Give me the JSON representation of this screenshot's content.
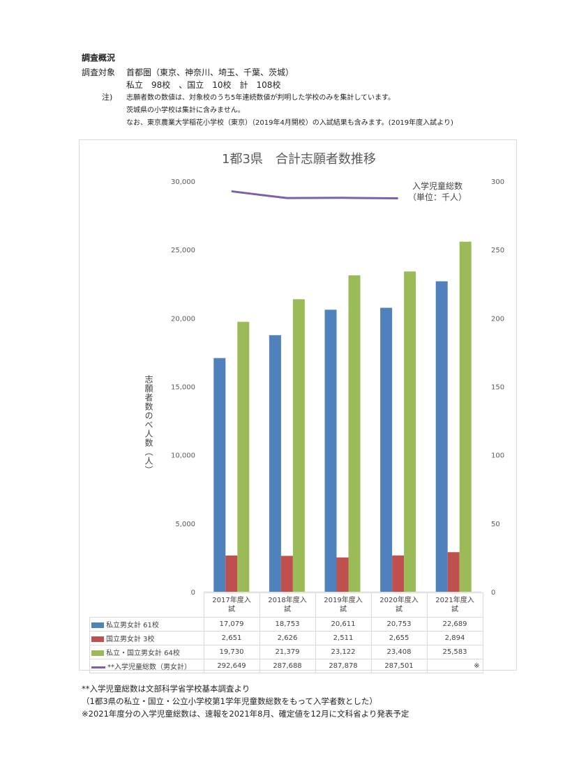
{
  "doc": {
    "section_title": "調査概況",
    "target_label": "調査対象",
    "target_value": "首都圏（東京、神奈川、埼玉、千葉、茨城）",
    "counts": "私立　98校　、国立　10校　計　108校",
    "note_label": "注)",
    "notes": [
      "志願者数の数値は、対象校のうち5年連続数値が判明した学校のみを集計しています。",
      "茨城県の小学校は集計に含みません。",
      "なお、東京農業大学稲花小学校（東京）（2019年4月開校）の入試結果も含みます。(2019年度入試より)"
    ],
    "footnotes": [
      "**入学児童総数は文部科学省学校基本調査より",
      "（1都3県の私立・国立・公立小学校第1学年児童数総数をもって入学者数とした）",
      "※2021年度分の入学児童総数は、速報を2021年8月、確定値を12月に文科省より発表予定"
    ]
  },
  "chart_data": {
    "type": "bar",
    "title": "1都3県　合計志願者数推移",
    "ylabel": "志願者数のべ人数（人）",
    "y2label": "入学児童総数（単位：千人）",
    "y2label_lines": [
      "入学児童総数",
      "（単位：千人）"
    ],
    "categories": [
      "2017年度入試",
      "2018年度入試",
      "2019年度入試",
      "2020年度入試",
      "2021年度入試"
    ],
    "category_lines": [
      [
        "2017年度入",
        "試"
      ],
      [
        "2018年度入",
        "試"
      ],
      [
        "2019年度入",
        "試"
      ],
      [
        "2020年度入",
        "試"
      ],
      [
        "2021年度入",
        "試"
      ]
    ],
    "ylim": [
      0,
      30000
    ],
    "yticks": [
      0,
      5000,
      10000,
      15000,
      20000,
      25000,
      30000
    ],
    "ytick_labels": [
      "0",
      "5,000",
      "10,000",
      "15,000",
      "20,000",
      "25,000",
      "30,000"
    ],
    "y2lim": [
      0,
      300
    ],
    "y2ticks": [
      0,
      50,
      100,
      150,
      200,
      250,
      300
    ],
    "y2tick_labels": [
      "0",
      "50",
      "100",
      "150",
      "200",
      "250",
      "300"
    ],
    "grid": false,
    "series": [
      {
        "name": "私立男女計 61校",
        "color": "#4f81bd",
        "values": [
          17079,
          18753,
          20611,
          20753,
          22689
        ],
        "labels": [
          "17,079",
          "18,753",
          "20,611",
          "20,753",
          "22,689"
        ]
      },
      {
        "name": "国立男女計 3校",
        "color": "#c0504d",
        "values": [
          2651,
          2626,
          2511,
          2655,
          2894
        ],
        "labels": [
          "2,651",
          "2,626",
          "2,511",
          "2,655",
          "2,894"
        ]
      },
      {
        "name": "私立・国立男女計 64校",
        "color": "#9bbb59",
        "values": [
          19730,
          21379,
          23122,
          23408,
          25583
        ],
        "labels": [
          "19,730",
          "21,379",
          "23,122",
          "23,408",
          "25,583"
        ]
      }
    ],
    "line_series": {
      "name": "**入学児童総数（男女計）",
      "color": "#7f5fa8",
      "axis": "secondary",
      "values": [
        292.649,
        287.688,
        287.878,
        287.501,
        null
      ],
      "labels": [
        "292,649",
        "287,688",
        "287,878",
        "287,501",
        "※"
      ]
    }
  }
}
